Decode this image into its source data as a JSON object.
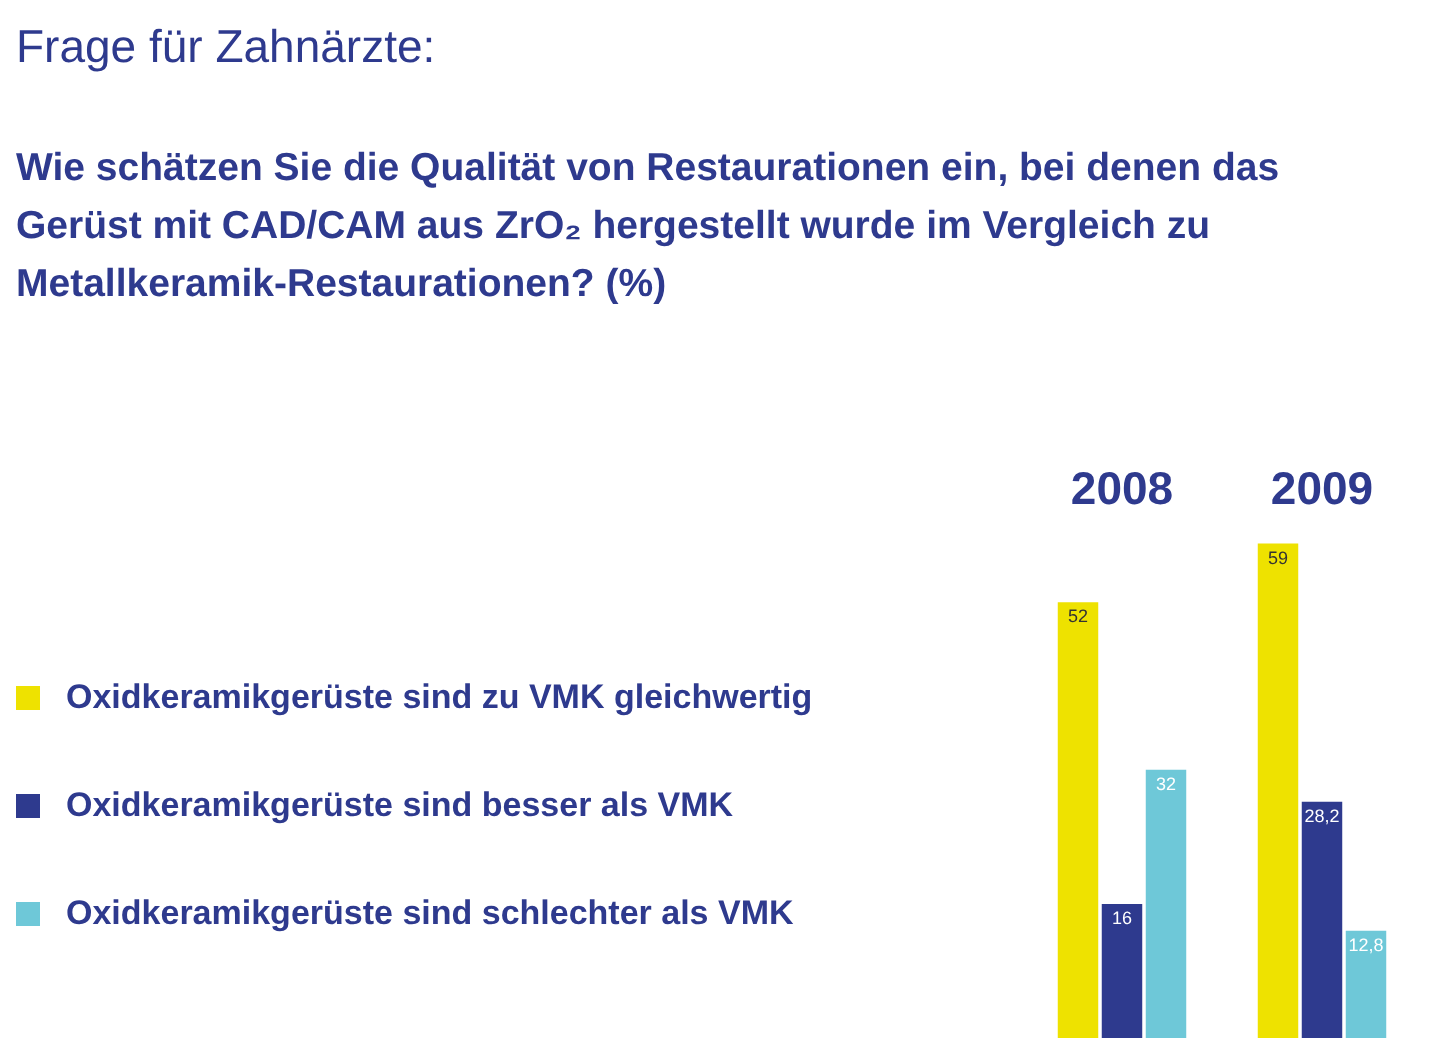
{
  "chart_data": {
    "type": "bar",
    "title": "Frage für Zahnärzte:",
    "subtitle": "Wie schätzen Sie die Qualität von Restaurationen ein, bei denen das Gerüst mit CAD/CAM aus ZrO₂ hergestellt wurde im Vergleich zu Metallkeramik-Restaurationen? (%)",
    "categories": [
      "2008",
      "2009"
    ],
    "series": [
      {
        "name": "Oxidkeramikgerüste sind zu VMK gleichwertig",
        "color": "#eee200",
        "values": [
          52,
          59
        ],
        "value_labels": [
          "52",
          "59"
        ]
      },
      {
        "name": "Oxidkeramikgerüste sind besser als VMK",
        "color": "#2e3a8e",
        "values": [
          16,
          28.2
        ],
        "value_labels": [
          "16",
          "28,2"
        ]
      },
      {
        "name": "Oxidkeramikgerüste sind schlechter als VMK",
        "color": "#6ec8d8",
        "values": [
          32,
          12.8
        ],
        "value_labels": [
          "32",
          "12,8"
        ]
      }
    ],
    "legend": "left",
    "grid": false
  }
}
